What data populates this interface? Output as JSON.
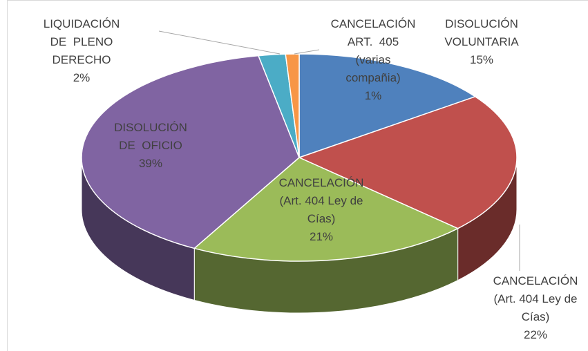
{
  "chart_data": {
    "type": "pie",
    "categories": [
      "DISOLUCIÓN\nVOLUNTARIA",
      "CANCELACIÓN\n(Art. 404 Ley de\nCías)",
      "CANCELACIÓN\n(Art. 404 Ley de\nCías)",
      "DISOLUCIÓN\nDE  OFICIO",
      "LIQUIDACIÓN\nDE  PLENO\nDERECHO",
      "CANCELACIÓN\nART.  405\n(varias\ncompañia)"
    ],
    "values": [
      15,
      22,
      21,
      39,
      2,
      1
    ],
    "value_labels": [
      "15%",
      "22%",
      "21%",
      "39%",
      "2%",
      "1%"
    ],
    "colors": [
      "#4f81bd",
      "#c0504d",
      "#9bbb59",
      "#8064a2",
      "#4bacc6",
      "#f79646"
    ]
  }
}
